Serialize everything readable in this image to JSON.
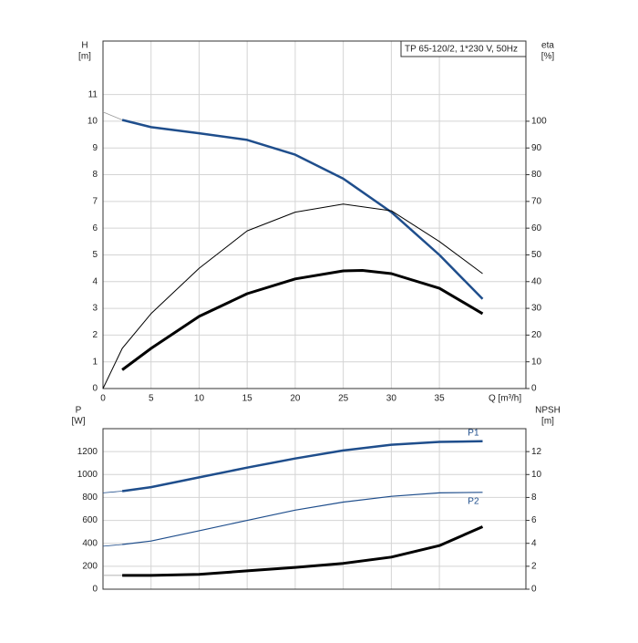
{
  "chart_data": [
    {
      "type": "line",
      "title": "TP 65-120/2, 1*230 V, 50Hz",
      "ylabel": "H",
      "yunit": "[m]",
      "y2label": "eta",
      "y2unit": "[%]",
      "xlabel": "Q [m³/h]",
      "xlim": [
        0,
        44
      ],
      "xticks": [
        0,
        5,
        10,
        15,
        20,
        25,
        30,
        35
      ],
      "ylim": [
        0,
        13
      ],
      "yticks": [
        0,
        1,
        2,
        3,
        4,
        5,
        6,
        7,
        8,
        9,
        10,
        11
      ],
      "y2lim": [
        0,
        130
      ],
      "y2ticks": [
        0,
        10,
        20,
        30,
        40,
        50,
        60,
        70,
        80,
        90,
        100
      ],
      "grid": true,
      "series": [
        {
          "color": "#999999",
          "width": 0.8,
          "x": [
            0,
            1,
            2
          ],
          "values": [
            10.35,
            10.2,
            10.05
          ]
        },
        {
          "color": "#1f4e8c",
          "width": 2.5,
          "x": [
            2,
            5,
            10,
            15,
            20,
            25,
            30,
            35,
            39.5
          ],
          "values": [
            10.05,
            9.78,
            9.55,
            9.3,
            8.75,
            7.85,
            6.6,
            5.0,
            3.35
          ]
        },
        {
          "color": "#000000",
          "width": 1,
          "axis": "y2",
          "x": [
            0,
            2,
            5,
            10,
            15,
            20,
            25,
            30,
            35,
            39.5
          ],
          "values": [
            0,
            15,
            28,
            45,
            59,
            66,
            69,
            66.5,
            55,
            43
          ]
        },
        {
          "color": "#000000",
          "width": 3,
          "axis": "y2",
          "x": [
            2,
            5,
            10,
            15,
            20,
            25,
            27,
            30,
            35,
            39.5
          ],
          "values": [
            7,
            15,
            27,
            35.5,
            41,
            44,
            44.2,
            43,
            37.5,
            28
          ]
        }
      ]
    },
    {
      "type": "line",
      "ylabel": "P",
      "yunit": "[W]",
      "y2label": "NPSH",
      "y2unit": "[m]",
      "xlim": [
        0,
        44
      ],
      "ylim": [
        0,
        1400
      ],
      "yticks": [
        0,
        200,
        400,
        600,
        800,
        1000,
        1200
      ],
      "y2lim": [
        0,
        14
      ],
      "y2ticks": [
        0,
        2,
        4,
        6,
        8,
        10,
        12
      ],
      "grid": true,
      "series": [
        {
          "color": "#1f4e8c",
          "width": 0.8,
          "x": [
            0,
            2
          ],
          "values": [
            840,
            855
          ]
        },
        {
          "label": "P1",
          "color": "#1f4e8c",
          "width": 2.5,
          "x": [
            2,
            5,
            10,
            15,
            20,
            25,
            30,
            35,
            39.5
          ],
          "values": [
            855,
            890,
            975,
            1060,
            1140,
            1210,
            1260,
            1285,
            1290
          ]
        },
        {
          "color": "#1f4e8c",
          "width": 0.8,
          "x": [
            0,
            2
          ],
          "values": [
            375,
            390
          ]
        },
        {
          "label": "P2",
          "color": "#1f4e8c",
          "width": 1.2,
          "x": [
            2,
            5,
            10,
            15,
            20,
            25,
            30,
            35,
            39.5
          ],
          "values": [
            390,
            420,
            510,
            600,
            690,
            760,
            810,
            840,
            845
          ]
        },
        {
          "color": "#999999",
          "width": 0.8,
          "axis": "y2",
          "x": [
            0,
            2
          ],
          "values": [
            1.2,
            1.2
          ]
        },
        {
          "color": "#000000",
          "width": 3,
          "axis": "y2",
          "x": [
            2,
            5,
            10,
            15,
            20,
            25,
            30,
            35,
            39.5
          ],
          "values": [
            1.2,
            1.2,
            1.3,
            1.6,
            1.9,
            2.25,
            2.8,
            3.8,
            5.45
          ]
        }
      ]
    }
  ]
}
